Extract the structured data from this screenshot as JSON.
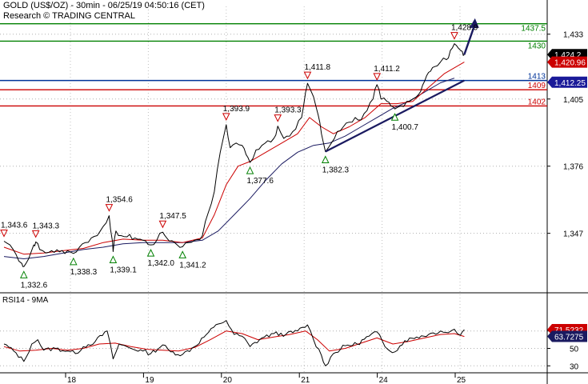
{
  "header": {
    "title": "GOLD (US$/OZ) - 30min - 06/25/19 04:50:16 (CET)",
    "source": "Research © TRADING CENTRAL"
  },
  "colors": {
    "price": "#000000",
    "ma_fast": "#cc0000",
    "ma_slow": "#1a1a60",
    "support": "#003399",
    "resistance": "#cc0000",
    "target": "#008000",
    "trendline": "#1a1a60",
    "rsi": "#000000",
    "rsi_ma": "#cc0000"
  },
  "chart_data": [
    {
      "type": "line",
      "name": "price-panel",
      "x_axis": {
        "ticks": [
          "18",
          "19",
          "20",
          "21",
          "24",
          "25"
        ]
      },
      "y_axis": {
        "ticks": [
          1347,
          1376,
          1405,
          1433
        ],
        "range": [
          1322,
          1445
        ]
      },
      "levels": [
        {
          "label": "1437.5",
          "value": 1437.5,
          "kind": "target"
        },
        {
          "label": "1430",
          "value": 1430.0,
          "kind": "target"
        },
        {
          "label": "1413",
          "value": 1413.0,
          "kind": "support"
        },
        {
          "label": "1409",
          "value": 1409.0,
          "kind": "resistance"
        },
        {
          "label": "1402",
          "value": 1402.0,
          "kind": "resistance"
        }
      ],
      "price_badges": [
        {
          "label": "1,424.2",
          "value": 1424.2,
          "kind": "last"
        },
        {
          "label": "1,420.96",
          "value": 1420.96,
          "kind": "ma_fast"
        },
        {
          "label": "1,412.25",
          "value": 1412.25,
          "kind": "support"
        }
      ],
      "peaks": [
        {
          "label": "1,343.6",
          "t": 0.0,
          "value": 1343.6
        },
        {
          "label": "1,343.3",
          "t": 0.8,
          "value": 1343.3
        },
        {
          "label": "1,354.6",
          "t": 2.65,
          "value": 1354.6
        },
        {
          "label": "1,347.5",
          "t": 4.0,
          "value": 1347.5
        },
        {
          "label": "1,393.9",
          "t": 5.6,
          "value": 1393.9
        },
        {
          "label": "1,393.3",
          "t": 6.9,
          "value": 1393.3
        },
        {
          "label": "1,411.8",
          "t": 7.65,
          "value": 1411.8
        },
        {
          "label": "1,411.2",
          "t": 9.4,
          "value": 1411.2
        },
        {
          "label": "1,428.9",
          "t": 11.35,
          "value": 1428.9
        }
      ],
      "troughs": [
        {
          "label": "1,332.6",
          "t": 0.5,
          "value": 1332.6
        },
        {
          "label": "1,338.3",
          "t": 1.75,
          "value": 1338.3
        },
        {
          "label": "1,339.1",
          "t": 2.75,
          "value": 1339.1
        },
        {
          "label": "1,342.0",
          "t": 3.7,
          "value": 1342.0
        },
        {
          "label": "1,341.2",
          "t": 4.5,
          "value": 1341.2
        },
        {
          "label": "1,377.6",
          "t": 6.2,
          "value": 1377.6
        },
        {
          "label": "1,382.3",
          "t": 8.1,
          "value": 1382.3
        },
        {
          "label": "1,400.7",
          "t": 9.85,
          "value": 1400.7
        }
      ],
      "price": [
        [
          0.0,
          1343.6
        ],
        [
          0.15,
          1342.0
        ],
        [
          0.3,
          1338.0
        ],
        [
          0.45,
          1334.0
        ],
        [
          0.5,
          1332.6
        ],
        [
          0.62,
          1336.0
        ],
        [
          0.75,
          1342.0
        ],
        [
          0.8,
          1343.3
        ],
        [
          0.9,
          1340.0
        ],
        [
          1.05,
          1338.5
        ],
        [
          1.2,
          1339.5
        ],
        [
          1.4,
          1339.0
        ],
        [
          1.6,
          1339.5
        ],
        [
          1.75,
          1338.3
        ],
        [
          1.9,
          1341.0
        ],
        [
          2.05,
          1343.0
        ],
        [
          2.2,
          1345.0
        ],
        [
          2.35,
          1346.0
        ],
        [
          2.5,
          1350.0
        ],
        [
          2.65,
          1354.6
        ],
        [
          2.72,
          1345.0
        ],
        [
          2.75,
          1339.1
        ],
        [
          2.82,
          1348.0
        ],
        [
          2.95,
          1346.0
        ],
        [
          3.1,
          1345.5
        ],
        [
          3.3,
          1345.0
        ],
        [
          3.5,
          1344.0
        ],
        [
          3.7,
          1342.0
        ],
        [
          3.85,
          1344.0
        ],
        [
          4.0,
          1347.5
        ],
        [
          4.1,
          1345.0
        ],
        [
          4.3,
          1343.0
        ],
        [
          4.5,
          1341.2
        ],
        [
          4.65,
          1343.0
        ],
        [
          4.8,
          1344.0
        ],
        [
          5.0,
          1346.0
        ],
        [
          5.15,
          1356.0
        ],
        [
          5.3,
          1365.0
        ],
        [
          5.45,
          1382.0
        ],
        [
          5.6,
          1393.9
        ],
        [
          5.7,
          1384.0
        ],
        [
          5.85,
          1386.0
        ],
        [
          6.0,
          1385.0
        ],
        [
          6.1,
          1381.0
        ],
        [
          6.2,
          1377.6
        ],
        [
          6.35,
          1383.0
        ],
        [
          6.5,
          1385.0
        ],
        [
          6.65,
          1387.0
        ],
        [
          6.8,
          1388.0
        ],
        [
          6.9,
          1393.3
        ],
        [
          7.05,
          1388.0
        ],
        [
          7.2,
          1389.0
        ],
        [
          7.35,
          1392.0
        ],
        [
          7.5,
          1397.0
        ],
        [
          7.6,
          1408.0
        ],
        [
          7.65,
          1411.8
        ],
        [
          7.8,
          1406.0
        ],
        [
          7.92,
          1398.0
        ],
        [
          8.0,
          1390.0
        ],
        [
          8.1,
          1382.3
        ],
        [
          8.25,
          1386.0
        ],
        [
          8.4,
          1391.0
        ],
        [
          8.55,
          1393.0
        ],
        [
          8.7,
          1395.0
        ],
        [
          8.85,
          1397.0
        ],
        [
          9.0,
          1396.0
        ],
        [
          9.15,
          1400.0
        ],
        [
          9.3,
          1405.0
        ],
        [
          9.4,
          1411.2
        ],
        [
          9.5,
          1405.0
        ],
        [
          9.65,
          1404.0
        ],
        [
          9.75,
          1402.0
        ],
        [
          9.85,
          1400.7
        ],
        [
          10.0,
          1402.0
        ],
        [
          10.15,
          1404.0
        ],
        [
          10.3,
          1405.0
        ],
        [
          10.45,
          1407.0
        ],
        [
          10.55,
          1411.0
        ],
        [
          10.65,
          1415.0
        ],
        [
          10.75,
          1417.0
        ],
        [
          10.85,
          1419.0
        ],
        [
          11.0,
          1421.0
        ],
        [
          11.15,
          1422.0
        ],
        [
          11.25,
          1426.0
        ],
        [
          11.35,
          1428.9
        ],
        [
          11.45,
          1427.0
        ],
        [
          11.55,
          1425.5
        ],
        [
          11.6,
          1424.2
        ]
      ],
      "ma_fast": [
        [
          0.0,
          1341.0
        ],
        [
          0.5,
          1338.0
        ],
        [
          1.0,
          1338.5
        ],
        [
          1.5,
          1339.5
        ],
        [
          2.0,
          1340.5
        ],
        [
          2.5,
          1343.0
        ],
        [
          3.0,
          1344.5
        ],
        [
          3.5,
          1344.0
        ],
        [
          4.0,
          1344.0
        ],
        [
          4.5,
          1343.0
        ],
        [
          5.0,
          1345.0
        ],
        [
          5.3,
          1355.0
        ],
        [
          5.6,
          1368.0
        ],
        [
          5.9,
          1376.0
        ],
        [
          6.2,
          1378.0
        ],
        [
          6.6,
          1382.0
        ],
        [
          7.0,
          1386.0
        ],
        [
          7.4,
          1390.0
        ],
        [
          7.7,
          1397.0
        ],
        [
          8.0,
          1393.0
        ],
        [
          8.3,
          1390.0
        ],
        [
          8.7,
          1393.0
        ],
        [
          9.1,
          1397.0
        ],
        [
          9.5,
          1403.0
        ],
        [
          9.9,
          1403.0
        ],
        [
          10.3,
          1404.0
        ],
        [
          10.7,
          1410.0
        ],
        [
          11.1,
          1416.0
        ],
        [
          11.6,
          1420.96
        ]
      ],
      "ma_slow": [
        [
          0.0,
          1337.0
        ],
        [
          0.5,
          1336.0
        ],
        [
          1.0,
          1337.0
        ],
        [
          1.5,
          1338.5
        ],
        [
          2.0,
          1340.0
        ],
        [
          2.5,
          1341.0
        ],
        [
          3.0,
          1342.5
        ],
        [
          3.5,
          1343.0
        ],
        [
          4.0,
          1343.0
        ],
        [
          4.5,
          1343.0
        ],
        [
          5.0,
          1344.0
        ],
        [
          5.4,
          1348.0
        ],
        [
          5.8,
          1355.0
        ],
        [
          6.2,
          1362.0
        ],
        [
          6.6,
          1370.0
        ],
        [
          7.0,
          1377.0
        ],
        [
          7.4,
          1382.0
        ],
        [
          7.8,
          1385.0
        ],
        [
          8.2,
          1386.0
        ],
        [
          8.6,
          1389.0
        ],
        [
          9.0,
          1393.0
        ],
        [
          9.4,
          1397.0
        ],
        [
          9.8,
          1401.0
        ],
        [
          10.2,
          1404.0
        ],
        [
          10.6,
          1408.0
        ],
        [
          11.0,
          1412.0
        ],
        [
          11.35,
          1414.0
        ]
      ],
      "trendline": [
        [
          8.1,
          1382.3
        ],
        [
          11.6,
          1413.0
        ]
      ],
      "forecast_arrow": [
        [
          11.6,
          1424.2
        ],
        [
          11.85,
          1438.5
        ]
      ]
    },
    {
      "type": "line",
      "name": "rsi-panel",
      "title": "RSI14 - 9MA",
      "y_axis": {
        "ticks": [
          30,
          50,
          70
        ],
        "range": [
          22,
          100
        ]
      },
      "badges": [
        {
          "label": "71.5232",
          "value": 71.5232,
          "kind": "rsi"
        },
        {
          "label": "63.7275",
          "value": 63.7275,
          "kind": "rsi_ma"
        }
      ],
      "rsi": [
        [
          0.0,
          55
        ],
        [
          0.3,
          45
        ],
        [
          0.5,
          35
        ],
        [
          0.7,
          55
        ],
        [
          0.85,
          60
        ],
        [
          1.0,
          48
        ],
        [
          1.3,
          50
        ],
        [
          1.6,
          47
        ],
        [
          1.8,
          44
        ],
        [
          2.0,
          52
        ],
        [
          2.3,
          58
        ],
        [
          2.6,
          70
        ],
        [
          2.75,
          38
        ],
        [
          2.9,
          55
        ],
        [
          3.2,
          50
        ],
        [
          3.5,
          47
        ],
        [
          3.7,
          44
        ],
        [
          4.0,
          54
        ],
        [
          4.2,
          46
        ],
        [
          4.5,
          43
        ],
        [
          4.8,
          52
        ],
        [
          5.1,
          66
        ],
        [
          5.4,
          78
        ],
        [
          5.6,
          82
        ],
        [
          5.8,
          66
        ],
        [
          6.0,
          64
        ],
        [
          6.2,
          52
        ],
        [
          6.5,
          62
        ],
        [
          6.8,
          67
        ],
        [
          7.1,
          66
        ],
        [
          7.4,
          70
        ],
        [
          7.65,
          77
        ],
        [
          7.8,
          60
        ],
        [
          8.0,
          42
        ],
        [
          8.1,
          30
        ],
        [
          8.3,
          44
        ],
        [
          8.6,
          53
        ],
        [
          8.9,
          55
        ],
        [
          9.2,
          64
        ],
        [
          9.4,
          69
        ],
        [
          9.6,
          52
        ],
        [
          9.85,
          46
        ],
        [
          10.1,
          59
        ],
        [
          10.4,
          63
        ],
        [
          10.7,
          66
        ],
        [
          11.0,
          70
        ],
        [
          11.2,
          68
        ],
        [
          11.35,
          72
        ],
        [
          11.5,
          65
        ],
        [
          11.6,
          71.5
        ]
      ],
      "rsi_ma": [
        [
          0.0,
          52
        ],
        [
          0.4,
          47
        ],
        [
          0.8,
          48
        ],
        [
          1.2,
          50
        ],
        [
          1.6,
          48
        ],
        [
          2.0,
          50
        ],
        [
          2.4,
          55
        ],
        [
          2.8,
          56
        ],
        [
          3.2,
          52
        ],
        [
          3.6,
          49
        ],
        [
          4.0,
          48
        ],
        [
          4.4,
          47
        ],
        [
          4.8,
          51
        ],
        [
          5.2,
          60
        ],
        [
          5.6,
          70
        ],
        [
          6.0,
          67
        ],
        [
          6.4,
          60
        ],
        [
          6.8,
          63
        ],
        [
          7.2,
          66
        ],
        [
          7.6,
          70
        ],
        [
          7.9,
          60
        ],
        [
          8.2,
          47
        ],
        [
          8.6,
          50
        ],
        [
          9.0,
          56
        ],
        [
          9.4,
          62
        ],
        [
          9.8,
          55
        ],
        [
          10.2,
          58
        ],
        [
          10.6,
          62
        ],
        [
          11.0,
          66
        ],
        [
          11.35,
          67
        ],
        [
          11.6,
          63.7
        ]
      ]
    }
  ]
}
